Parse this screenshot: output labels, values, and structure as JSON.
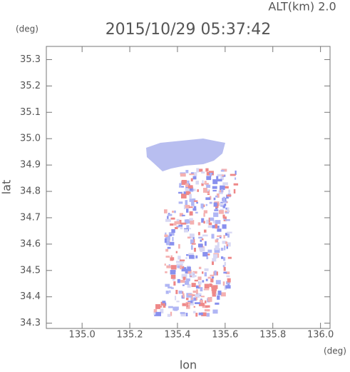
{
  "chart_data": {
    "type": "map",
    "title": "2015/10/29 05:37:42",
    "subtitle": "ALT(km) 2.0",
    "y_unit": "(deg)",
    "x_unit": "(deg)",
    "x_label": "lon",
    "y_label": "lat",
    "xlim": [
      134.85,
      136.04
    ],
    "ylim": [
      34.28,
      35.35
    ],
    "xticks": [
      {
        "value": 135.0,
        "label": "135.0"
      },
      135.2,
      135.4,
      135.6,
      135.8,
      {
        "value": 136.0,
        "label": "136.0"
      }
    ],
    "yticks": [
      35.3,
      35.2,
      35.1,
      {
        "value": 35.0,
        "label": "35.0"
      },
      34.9,
      34.8,
      34.7,
      34.6,
      34.5,
      34.4,
      34.3
    ]
  }
}
